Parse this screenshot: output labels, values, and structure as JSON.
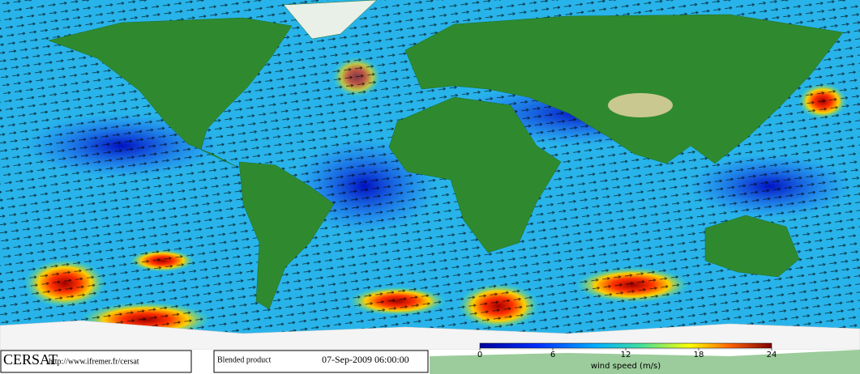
{
  "footer": {
    "logo": "CERSAT",
    "url": "http://www.ifremer.fr/cersat",
    "product": "Blended product",
    "timestamp": "07-Sep-2009 06:00:00"
  },
  "colorbar": {
    "label": "wind speed (m/s)",
    "lim": [
      0,
      24
    ],
    "ticks": [
      0,
      6,
      12,
      18,
      24
    ]
  }
}
